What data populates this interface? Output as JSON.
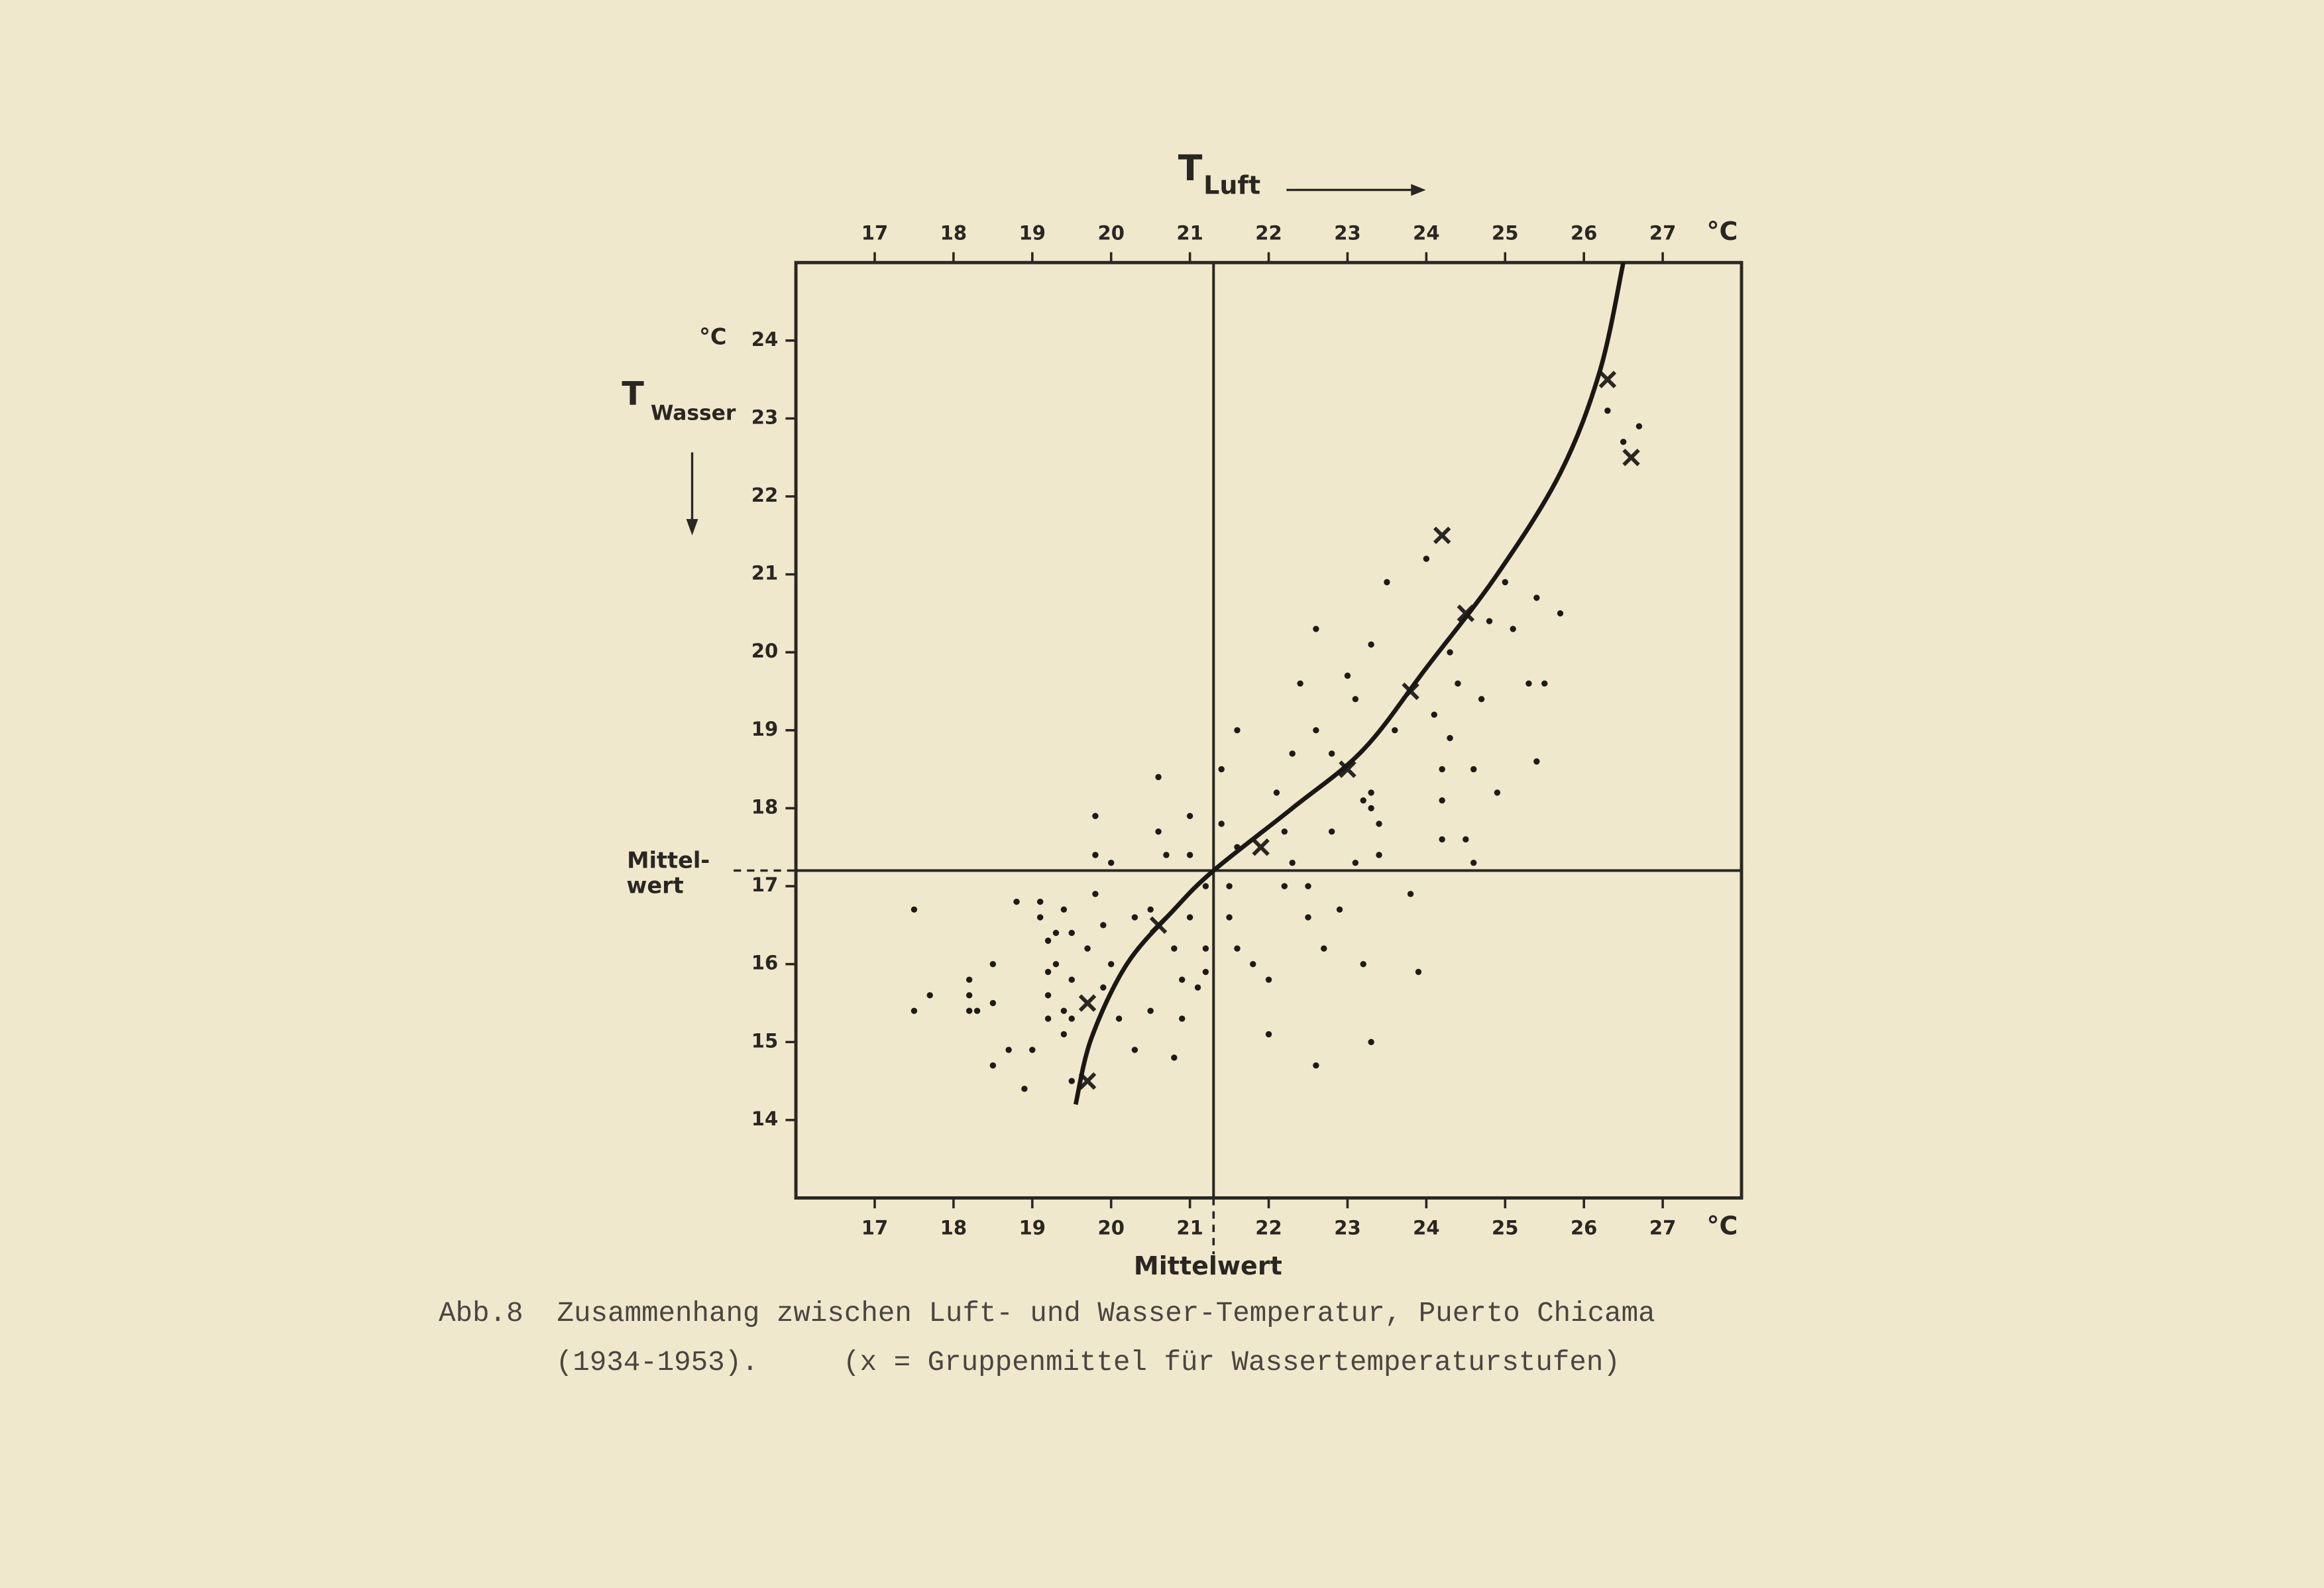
{
  "chart_data": {
    "type": "scatter",
    "xlabel": "T",
    "xlabel_sub": "Luft",
    "ylabel": "T",
    "ylabel_sub": "Wasser",
    "unit": "°C",
    "xlim": [
      16,
      28
    ],
    "ylim": [
      13,
      25
    ],
    "xticks": [
      17,
      18,
      19,
      20,
      21,
      22,
      23,
      24,
      25,
      26,
      27
    ],
    "yticks": [
      14,
      15,
      16,
      17,
      18,
      19,
      20,
      21,
      22,
      23,
      24
    ],
    "xmean": 21.3,
    "ymean": 17.2,
    "xmean_label": "Mittelwert",
    "ymean_label": [
      "Mittel-",
      "wert"
    ],
    "caption": [
      "Abb.8  Zusammenhang zwischen Luft- und Wasser-Temperatur, Puerto Chicama",
      "(1934-1953).     (x = Gruppenmittel für Wassertemperaturstufen)"
    ],
    "series": [
      {
        "marker": "dot",
        "color": "#1e1b17",
        "x": [
          17.5,
          17.5,
          17.7,
          18.2,
          18.2,
          18.2,
          18.5,
          18.5,
          18.3,
          18.5,
          18.7,
          18.9,
          18.8,
          19.1,
          19.1,
          19.2,
          19.2,
          19.2,
          19.2,
          19.0,
          19.3,
          19.5,
          19.4,
          19.3,
          19.5,
          19.4,
          19.4,
          19.5,
          19.5,
          19.8,
          19.8,
          19.8,
          19.7,
          19.9,
          19.9,
          20.0,
          20.1,
          20.0,
          20.3,
          20.3,
          20.5,
          20.5,
          20.6,
          20.6,
          20.7,
          20.8,
          20.9,
          20.8,
          20.9,
          21.0,
          21.0,
          21.2,
          21.2,
          21.2,
          21.1,
          21.0,
          21.4,
          21.4,
          21.5,
          21.5,
          21.6,
          21.6,
          21.6,
          21.8,
          22.0,
          22.0,
          22.1,
          22.2,
          22.2,
          22.3,
          22.3,
          22.4,
          22.5,
          22.5,
          22.6,
          22.6,
          22.7,
          22.6,
          22.8,
          22.8,
          22.9,
          23.0,
          23.1,
          23.1,
          23.2,
          23.3,
          23.2,
          23.3,
          23.3,
          23.4,
          23.4,
          23.3,
          23.5,
          23.6,
          23.8,
          23.9,
          24.0,
          24.1,
          24.2,
          24.2,
          24.2,
          24.3,
          24.3,
          24.4,
          24.5,
          24.6,
          24.6,
          24.7,
          24.8,
          24.9,
          25.0,
          25.1,
          25.3,
          25.4,
          25.4,
          25.5,
          25.7,
          26.3,
          26.5,
          26.7
        ],
        "y": [
          15.4,
          16.7,
          15.6,
          15.4,
          15.8,
          15.6,
          16.0,
          15.5,
          15.4,
          14.7,
          14.9,
          14.4,
          16.8,
          16.8,
          16.6,
          16.3,
          15.9,
          15.6,
          15.3,
          14.9,
          16.4,
          16.4,
          16.7,
          16.0,
          15.8,
          15.4,
          15.1,
          14.5,
          15.3,
          17.9,
          17.4,
          16.9,
          16.2,
          16.5,
          15.7,
          16.0,
          15.3,
          17.3,
          16.6,
          14.9,
          15.4,
          16.7,
          18.4,
          17.7,
          17.4,
          16.2,
          15.8,
          14.8,
          15.3,
          16.6,
          17.4,
          17.0,
          16.2,
          15.9,
          15.7,
          17.9,
          17.8,
          18.5,
          17.0,
          16.6,
          16.2,
          17.5,
          19.0,
          16.0,
          15.8,
          15.1,
          18.2,
          17.0,
          17.7,
          18.7,
          17.3,
          19.6,
          17.0,
          16.6,
          19.0,
          20.3,
          16.2,
          14.7,
          17.7,
          18.7,
          16.7,
          19.7,
          17.3,
          19.4,
          16.0,
          15.0,
          18.1,
          18.2,
          18.0,
          17.8,
          17.4,
          20.1,
          20.9,
          19.0,
          16.9,
          15.9,
          21.2,
          19.2,
          18.5,
          18.1,
          17.6,
          18.9,
          20.0,
          19.6,
          17.6,
          17.3,
          18.5,
          19.4,
          20.4,
          18.2,
          20.9,
          20.3,
          19.6,
          20.7,
          18.6,
          19.6,
          20.5,
          23.1,
          22.7,
          22.9
        ]
      },
      {
        "marker": "cross",
        "color": "#2a2622",
        "x": [
          19.7,
          19.7,
          20.6,
          21.9,
          23.0,
          23.8,
          24.5,
          24.2,
          26.3,
          26.6
        ],
        "y": [
          14.5,
          15.5,
          16.5,
          17.5,
          18.5,
          19.5,
          20.5,
          21.5,
          23.5,
          22.5
        ]
      },
      {
        "marker": "line",
        "color": "#1a1714",
        "x": [
          19.55,
          19.75,
          20.2,
          20.8,
          21.3,
          22.3,
          23.2,
          24.0,
          24.9,
          25.7,
          26.2,
          26.5
        ],
        "y": [
          14.2,
          15.05,
          16.0,
          16.7,
          17.2,
          18.0,
          18.75,
          19.8,
          21.0,
          22.3,
          23.6,
          25.0
        ]
      }
    ]
  }
}
